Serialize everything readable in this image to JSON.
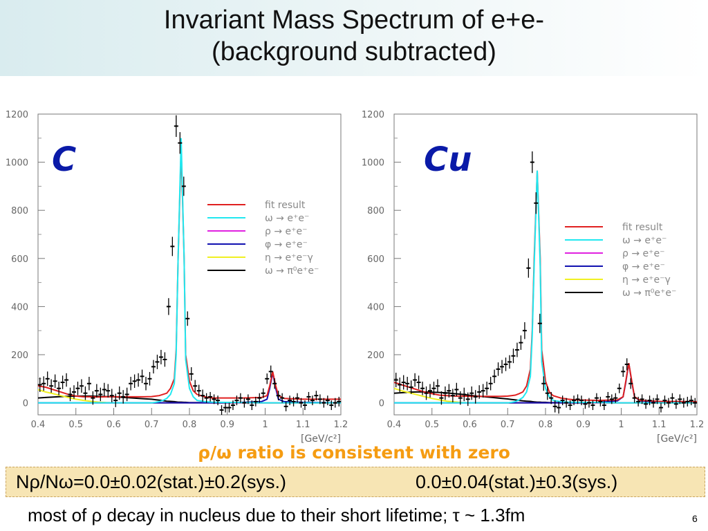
{
  "slide": {
    "title_line1": "Invariant Mass Spectrum of e+e-",
    "title_line2": "(background subtracted)",
    "ratio_text": "ρ/ω ratio is consistent with zero",
    "result_left": "Nρ/Nω=0.0±0.02(stat.)±0.2(sys.)",
    "result_right": "0.0±0.04(stat.)±0.3(sys.)",
    "footer": "most of ρ decay in nucleus due to their short lifetime; τ ~ 1.3fm",
    "page_number": "6"
  },
  "colors": {
    "fit_result": "#e02020",
    "omega": "#20e8f0",
    "rho": "#e020e0",
    "phi": "#1010b0",
    "eta": "#f0f020",
    "omega_dalitz": "#000000",
    "panel_label": "#0a1aa8",
    "ratio_text": "#f59c12",
    "result_box": "#f7e5b4"
  },
  "chart_data": [
    {
      "type": "scatter",
      "panel_label": "C",
      "xlim": [
        0.4,
        1.2
      ],
      "ylim": [
        -50,
        1200
      ],
      "x_ticks": [
        "0.4",
        "0.5",
        "0.6",
        "0.7",
        "0.8",
        "0.9",
        "1",
        "1.1",
        "1.2"
      ],
      "y_ticks": [
        "0",
        "200",
        "400",
        "600",
        "800",
        "1000",
        "1200"
      ],
      "x_unit": "[GeV/c²]",
      "legend": [
        "fit result",
        "ω → e⁺e⁻",
        "ρ → e⁺e⁻",
        "φ → e⁺e⁻",
        "η → e⁺e⁻γ",
        "ω → π⁰e⁺e⁻"
      ],
      "legend_placement": "right",
      "points": {
        "x": [
          0.405,
          0.415,
          0.425,
          0.435,
          0.445,
          0.455,
          0.465,
          0.475,
          0.485,
          0.495,
          0.505,
          0.515,
          0.525,
          0.535,
          0.545,
          0.555,
          0.565,
          0.575,
          0.585,
          0.595,
          0.605,
          0.615,
          0.625,
          0.635,
          0.645,
          0.655,
          0.665,
          0.675,
          0.685,
          0.695,
          0.705,
          0.715,
          0.725,
          0.735,
          0.745,
          0.755,
          0.765,
          0.775,
          0.785,
          0.795,
          0.805,
          0.815,
          0.825,
          0.835,
          0.845,
          0.855,
          0.865,
          0.875,
          0.885,
          0.895,
          0.905,
          0.915,
          0.925,
          0.935,
          0.945,
          0.955,
          0.965,
          0.975,
          0.985,
          0.995,
          1.005,
          1.015,
          1.025,
          1.035,
          1.045,
          1.055,
          1.065,
          1.075,
          1.085,
          1.095,
          1.105,
          1.115,
          1.125,
          1.135,
          1.145,
          1.155,
          1.165,
          1.175,
          1.185,
          1.195
        ],
        "y": [
          75,
          80,
          100,
          70,
          90,
          60,
          85,
          95,
          35,
          45,
          60,
          70,
          40,
          80,
          20,
          50,
          35,
          55,
          50,
          30,
          10,
          40,
          25,
          35,
          80,
          90,
          95,
          110,
          80,
          100,
          150,
          170,
          190,
          180,
          400,
          650,
          1150,
          1080,
          900,
          350,
          120,
          70,
          50,
          30,
          20,
          25,
          15,
          10,
          -30,
          -20,
          -20,
          -10,
          10,
          20,
          0,
          15,
          -10,
          5,
          20,
          40,
          100,
          130,
          80,
          30,
          20,
          -15,
          10,
          5,
          20,
          0,
          -10,
          25,
          10,
          30,
          15,
          0,
          10,
          -10,
          0,
          5
        ],
        "errors": [
          30,
          30,
          30,
          28,
          28,
          28,
          28,
          28,
          28,
          28,
          28,
          28,
          28,
          28,
          28,
          28,
          28,
          28,
          28,
          28,
          28,
          28,
          28,
          28,
          28,
          28,
          28,
          28,
          28,
          28,
          28,
          30,
          30,
          30,
          35,
          40,
          45,
          45,
          40,
          30,
          28,
          25,
          25,
          25,
          20,
          20,
          20,
          20,
          20,
          20,
          20,
          20,
          20,
          20,
          20,
          20,
          20,
          20,
          20,
          20,
          22,
          25,
          22,
          20,
          20,
          20,
          20,
          20,
          20,
          20,
          20,
          20,
          20,
          20,
          20,
          20,
          20,
          20,
          20,
          20
        ]
      },
      "series": [
        {
          "name": "fit result",
          "y": [
            70,
            65,
            55,
            45,
            35,
            28,
            25,
            25,
            24,
            25,
            25,
            25,
            25,
            25,
            25,
            26,
            28,
            30,
            35,
            40,
            60,
            100,
            220,
            600,
            1060,
            600,
            200,
            90,
            50,
            35,
            25,
            20,
            20,
            20,
            22,
            30,
            70,
            130,
            70,
            30,
            18,
            15,
            15
          ]
        },
        {
          "name": "ω → e⁺e⁻",
          "y": [
            0,
            0,
            0,
            0,
            0,
            0,
            0,
            0,
            0,
            0,
            0,
            0,
            0,
            0,
            0,
            0,
            2,
            5,
            10,
            18,
            35,
            80,
            200,
            600,
            1100,
            600,
            180,
            60,
            25,
            10,
            5,
            3,
            2,
            1,
            0,
            0,
            0,
            0,
            0,
            0,
            0,
            0,
            0
          ]
        },
        {
          "name": "ρ → e⁺e⁻",
          "y": [
            0,
            0,
            0,
            0,
            0,
            0,
            0,
            0,
            0,
            0,
            0,
            0,
            0,
            0,
            0,
            0,
            0,
            0,
            0,
            0,
            0,
            0,
            0,
            0,
            0,
            0,
            0,
            0,
            0,
            0,
            0,
            0,
            0,
            0,
            0,
            0,
            0,
            0,
            0,
            0,
            0,
            0,
            0
          ]
        },
        {
          "name": "φ → e⁺e⁻",
          "y": [
            0,
            0,
            0,
            0,
            0,
            0,
            0,
            0,
            0,
            0,
            0,
            0,
            0,
            0,
            0,
            0,
            0,
            0,
            0,
            0,
            0,
            0,
            0,
            0,
            0,
            0,
            0,
            0,
            0,
            0,
            0,
            0,
            0,
            2,
            5,
            15,
            60,
            125,
            60,
            15,
            5,
            2,
            0
          ]
        },
        {
          "name": "η → e⁺e⁻γ",
          "y": [
            55,
            45,
            38,
            30,
            22,
            15,
            10,
            6,
            3,
            1,
            0,
            0,
            0,
            0,
            0,
            0,
            0,
            0,
            0,
            0,
            0,
            0,
            0,
            0,
            0,
            0,
            0,
            0,
            0,
            0,
            0,
            0,
            0,
            0,
            0,
            0,
            0,
            0,
            0,
            0,
            0,
            0,
            0
          ]
        },
        {
          "name": "ω → π⁰e⁺e⁻",
          "y": [
            20,
            22,
            24,
            26,
            27,
            28,
            28,
            28,
            27,
            26,
            25,
            23,
            21,
            19,
            17,
            15,
            13,
            11,
            9,
            7,
            6,
            5,
            4,
            3,
            3,
            2,
            2,
            1,
            1,
            1,
            1,
            0,
            0,
            0,
            0,
            0,
            0,
            0,
            0,
            0,
            0,
            0,
            0
          ]
        }
      ],
      "curve_x": [
        0.4,
        0.42,
        0.44,
        0.46,
        0.48,
        0.5,
        0.52,
        0.54,
        0.56,
        0.58,
        0.6,
        0.62,
        0.64,
        0.66,
        0.68,
        0.7,
        0.71,
        0.72,
        0.73,
        0.74,
        0.75,
        0.76,
        0.765,
        0.77,
        0.778,
        0.786,
        0.79,
        0.8,
        0.81,
        0.82,
        0.84,
        0.86,
        0.88,
        0.94,
        0.99,
        1.005,
        1.012,
        1.02,
        1.028,
        1.035,
        1.05,
        1.1,
        1.2
      ]
    },
    {
      "type": "scatter",
      "panel_label": "Cu",
      "xlim": [
        0.4,
        1.2
      ],
      "ylim": [
        -50,
        1200
      ],
      "x_ticks": [
        "0.4",
        "0.5",
        "0.6",
        "0.7",
        "0.8",
        "0.9",
        "1",
        "1.1",
        "1.2"
      ],
      "y_ticks": [
        "0",
        "200",
        "400",
        "600",
        "800",
        "1000",
        "1200"
      ],
      "x_unit": "[GeV/c²]",
      "legend": [
        "fit result",
        "ω → e⁺e⁻",
        "ρ → e⁺e⁻",
        "φ → e⁺e⁻",
        "η → e⁺e⁻γ",
        "ω → π⁰e⁺e⁻"
      ],
      "legend_placement": "right",
      "points": {
        "x": [
          0.405,
          0.415,
          0.425,
          0.435,
          0.445,
          0.455,
          0.465,
          0.475,
          0.485,
          0.495,
          0.505,
          0.515,
          0.525,
          0.535,
          0.545,
          0.555,
          0.565,
          0.575,
          0.585,
          0.595,
          0.605,
          0.615,
          0.625,
          0.635,
          0.645,
          0.655,
          0.665,
          0.675,
          0.685,
          0.695,
          0.705,
          0.715,
          0.725,
          0.735,
          0.745,
          0.755,
          0.765,
          0.775,
          0.785,
          0.795,
          0.805,
          0.815,
          0.825,
          0.835,
          0.845,
          0.855,
          0.865,
          0.875,
          0.885,
          0.895,
          0.905,
          0.915,
          0.925,
          0.935,
          0.945,
          0.955,
          0.965,
          0.975,
          0.985,
          0.995,
          1.005,
          1.015,
          1.025,
          1.035,
          1.045,
          1.055,
          1.065,
          1.075,
          1.085,
          1.095,
          1.105,
          1.115,
          1.125,
          1.135,
          1.145,
          1.155,
          1.165,
          1.175,
          1.185,
          1.195
        ],
        "y": [
          95,
          75,
          85,
          80,
          65,
          95,
          85,
          60,
          40,
          50,
          60,
          70,
          20,
          40,
          50,
          30,
          55,
          20,
          35,
          15,
          40,
          25,
          45,
          50,
          60,
          80,
          110,
          140,
          150,
          160,
          170,
          195,
          220,
          250,
          300,
          560,
          1000,
          830,
          330,
          80,
          40,
          20,
          -15,
          -20,
          10,
          0,
          -10,
          10,
          15,
          10,
          -5,
          0,
          -10,
          20,
          5,
          -10,
          25,
          15,
          20,
          60,
          130,
          160,
          80,
          20,
          5,
          15,
          -5,
          10,
          0,
          15,
          -20,
          10,
          0,
          20,
          -5,
          15,
          0,
          5,
          10,
          0
        ],
        "errors": [
          30,
          30,
          30,
          28,
          28,
          28,
          28,
          28,
          28,
          28,
          28,
          28,
          28,
          28,
          28,
          28,
          28,
          28,
          28,
          28,
          28,
          28,
          28,
          28,
          28,
          28,
          28,
          28,
          28,
          28,
          28,
          30,
          30,
          30,
          35,
          40,
          45,
          45,
          40,
          30,
          28,
          25,
          25,
          25,
          20,
          20,
          20,
          20,
          20,
          20,
          20,
          20,
          20,
          20,
          20,
          20,
          20,
          20,
          20,
          20,
          22,
          25,
          22,
          20,
          20,
          20,
          20,
          20,
          20,
          20,
          20,
          20,
          20,
          20,
          20,
          20,
          20,
          20,
          20,
          20
        ]
      },
      "series": [
        {
          "name": "fit result",
          "y": [
            85,
            75,
            65,
            55,
            45,
            38,
            32,
            30,
            28,
            28,
            27,
            27,
            27,
            27,
            27,
            28,
            30,
            32,
            38,
            45,
            70,
            140,
            300,
            600,
            965,
            600,
            220,
            90,
            45,
            30,
            20,
            15,
            12,
            10,
            12,
            25,
            90,
            165,
            90,
            25,
            10,
            6,
            5
          ]
        },
        {
          "name": "ω → e⁺e⁻",
          "y": [
            0,
            0,
            0,
            0,
            0,
            0,
            0,
            0,
            0,
            0,
            0,
            0,
            0,
            0,
            0,
            0,
            2,
            5,
            12,
            22,
            45,
            110,
            280,
            570,
            965,
            570,
            170,
            60,
            25,
            10,
            5,
            3,
            2,
            1,
            0,
            0,
            0,
            0,
            0,
            0,
            0,
            0,
            0
          ]
        },
        {
          "name": "ρ → e⁺e⁻",
          "y": [
            0,
            0,
            0,
            0,
            0,
            0,
            0,
            0,
            0,
            0,
            0,
            0,
            0,
            0,
            0,
            0,
            0,
            0,
            0,
            0,
            0,
            0,
            0,
            0,
            0,
            0,
            0,
            0,
            0,
            0,
            0,
            0,
            0,
            0,
            0,
            0,
            0,
            0,
            0,
            0,
            0,
            0,
            0
          ]
        },
        {
          "name": "φ → e⁺e⁻",
          "y": [
            0,
            0,
            0,
            0,
            0,
            0,
            0,
            0,
            0,
            0,
            0,
            0,
            0,
            0,
            0,
            0,
            0,
            0,
            0,
            0,
            0,
            0,
            0,
            0,
            0,
            0,
            0,
            0,
            0,
            0,
            0,
            0,
            0,
            2,
            8,
            25,
            85,
            165,
            85,
            25,
            8,
            2,
            0
          ]
        },
        {
          "name": "η → e⁺e⁻γ",
          "y": [
            60,
            50,
            42,
            34,
            26,
            18,
            12,
            7,
            4,
            1,
            0,
            0,
            0,
            0,
            0,
            0,
            0,
            0,
            0,
            0,
            0,
            0,
            0,
            0,
            0,
            0,
            0,
            0,
            0,
            0,
            0,
            0,
            0,
            0,
            0,
            0,
            0,
            0,
            0,
            0,
            0,
            0,
            0
          ]
        },
        {
          "name": "ω → π⁰e⁺e⁻",
          "y": [
            40,
            42,
            44,
            45,
            45,
            44,
            43,
            41,
            38,
            35,
            31,
            28,
            25,
            22,
            19,
            16,
            14,
            12,
            10,
            8,
            7,
            6,
            5,
            4,
            3,
            3,
            2,
            2,
            1,
            1,
            1,
            0,
            0,
            0,
            0,
            0,
            0,
            0,
            0,
            0,
            0,
            0,
            0
          ]
        }
      ],
      "curve_x": [
        0.4,
        0.42,
        0.44,
        0.46,
        0.48,
        0.5,
        0.52,
        0.54,
        0.56,
        0.58,
        0.6,
        0.62,
        0.64,
        0.66,
        0.68,
        0.7,
        0.71,
        0.72,
        0.73,
        0.74,
        0.75,
        0.76,
        0.765,
        0.77,
        0.778,
        0.786,
        0.79,
        0.8,
        0.81,
        0.82,
        0.84,
        0.86,
        0.88,
        0.94,
        0.99,
        1.005,
        1.012,
        1.02,
        1.028,
        1.035,
        1.05,
        1.1,
        1.2
      ]
    }
  ]
}
